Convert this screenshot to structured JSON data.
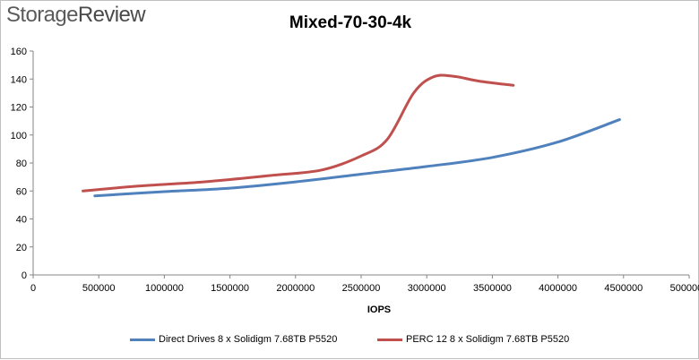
{
  "logo": {
    "part1": "Storage",
    "part2": "Review"
  },
  "colors": {
    "series1": "#4f81bd",
    "series2": "#c0504d",
    "axis": "#868686",
    "text": "#000000"
  },
  "chart_data": {
    "type": "line",
    "title": "Mixed-70-30-4k",
    "xlabel": "IOPS",
    "ylabel": "",
    "xlim": [
      0,
      5000000
    ],
    "ylim": [
      0,
      160
    ],
    "x_ticks": [
      0,
      500000,
      1000000,
      1500000,
      2000000,
      2500000,
      3000000,
      3500000,
      4000000,
      4500000,
      5000000
    ],
    "x_tick_labels": [
      "0",
      "500000",
      "1000000",
      "1500000",
      "2000000",
      "2500000",
      "3000000",
      "3500000",
      "4000000",
      "4500000",
      "5000000"
    ],
    "y_ticks": [
      0,
      20,
      40,
      60,
      80,
      100,
      120,
      140,
      160
    ],
    "y_tick_labels": [
      "0",
      "20",
      "40",
      "60",
      "80",
      "100",
      "120",
      "140",
      "160"
    ],
    "grid": false,
    "legend": "bottom",
    "series": [
      {
        "name": "Direct Drives 8 x Solidigm 7.68TB P5520",
        "points": [
          [
            470000,
            56.5
          ],
          [
            1000000,
            59.5
          ],
          [
            1500000,
            62.0
          ],
          [
            2000000,
            66.5
          ],
          [
            2500000,
            72.0
          ],
          [
            3000000,
            77.5
          ],
          [
            3500000,
            84.0
          ],
          [
            4000000,
            95.0
          ],
          [
            4470000,
            111.0
          ]
        ]
      },
      {
        "name": "PERC 12 8 x Solidigm 7.68TB P5520",
        "points": [
          [
            380000,
            60.0
          ],
          [
            800000,
            63.5
          ],
          [
            1300000,
            66.5
          ],
          [
            1800000,
            71.0
          ],
          [
            2200000,
            75.0
          ],
          [
            2500000,
            85.0
          ],
          [
            2700000,
            97.0
          ],
          [
            2900000,
            130.0
          ],
          [
            3050000,
            141.5
          ],
          [
            3200000,
            142.0
          ],
          [
            3400000,
            138.5
          ],
          [
            3660000,
            135.5
          ]
        ]
      }
    ]
  }
}
